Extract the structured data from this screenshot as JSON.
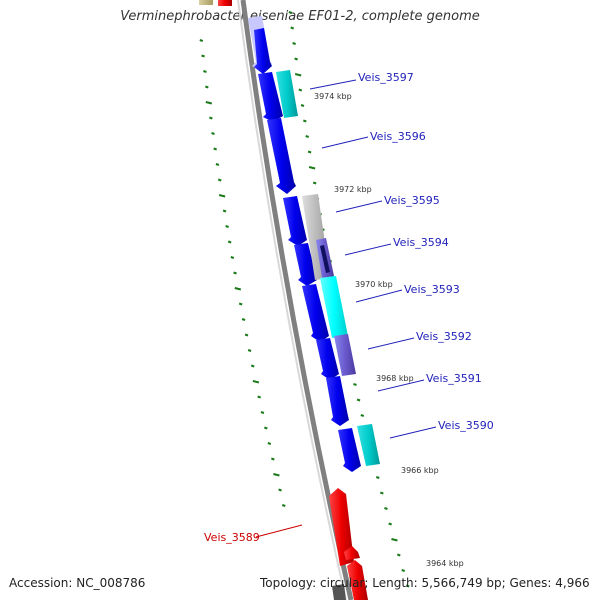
{
  "title": "Verminephrobacter eiseniae EF01-2, complete genome",
  "footer": {
    "accession": "Accession: NC_008786",
    "topology": "Topology: circular; Length: 5,566,749 bp; Genes: 4,966"
  },
  "colors": {
    "backbone": "#808080",
    "tick": "#1a7a1a",
    "blue_label": "#2222bb",
    "red_label": "#cc0000"
  },
  "kbp_labels": [
    "3974 kbp",
    "3972 kbp",
    "3970 kbp",
    "3968 kbp",
    "3966 kbp",
    "3964 kbp"
  ],
  "genes": [
    {
      "label": "Veis_3597",
      "color": "blue"
    },
    {
      "label": "Veis_3596",
      "color": "blue"
    },
    {
      "label": "Veis_3595",
      "color": "blue"
    },
    {
      "label": "Veis_3594",
      "color": "blue"
    },
    {
      "label": "Veis_3593",
      "color": "blue"
    },
    {
      "label": "Veis_3592",
      "color": "blue"
    },
    {
      "label": "Veis_3591",
      "color": "blue"
    },
    {
      "label": "Veis_3590",
      "color": "blue"
    },
    {
      "label": "Veis_3589",
      "color": "red"
    }
  ]
}
